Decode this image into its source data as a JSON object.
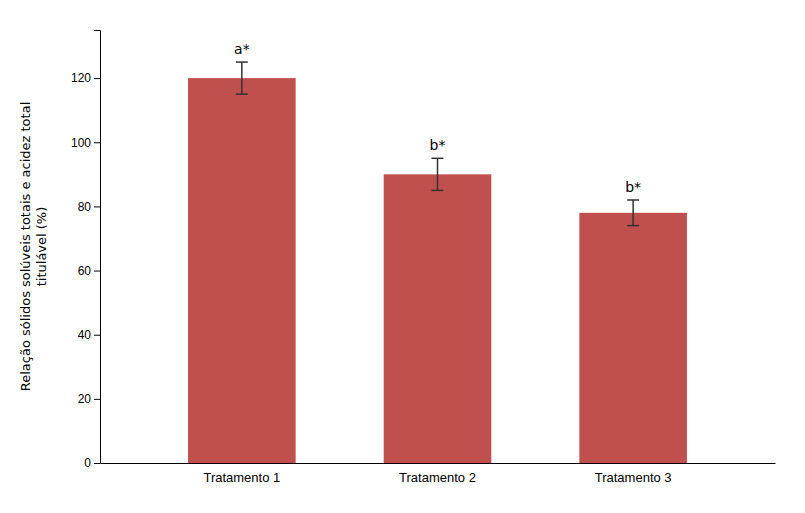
{
  "chart_data": {
    "type": "bar",
    "categories": [
      "Tratamento 1",
      "Tratamento 2",
      "Tratamento 3"
    ],
    "values": [
      120,
      90,
      78
    ],
    "errors": [
      5,
      5,
      4
    ],
    "color": "#C0504D",
    "annotations": [
      "a*",
      "b*",
      "b*"
    ],
    "ylabel": "Relação sólidos solúveis totais e acidez total\ntitulável (%)",
    "ylim": [
      0,
      135
    ],
    "yticks": [
      0,
      20,
      40,
      60,
      80,
      100,
      120
    ],
    "grid": false
  }
}
